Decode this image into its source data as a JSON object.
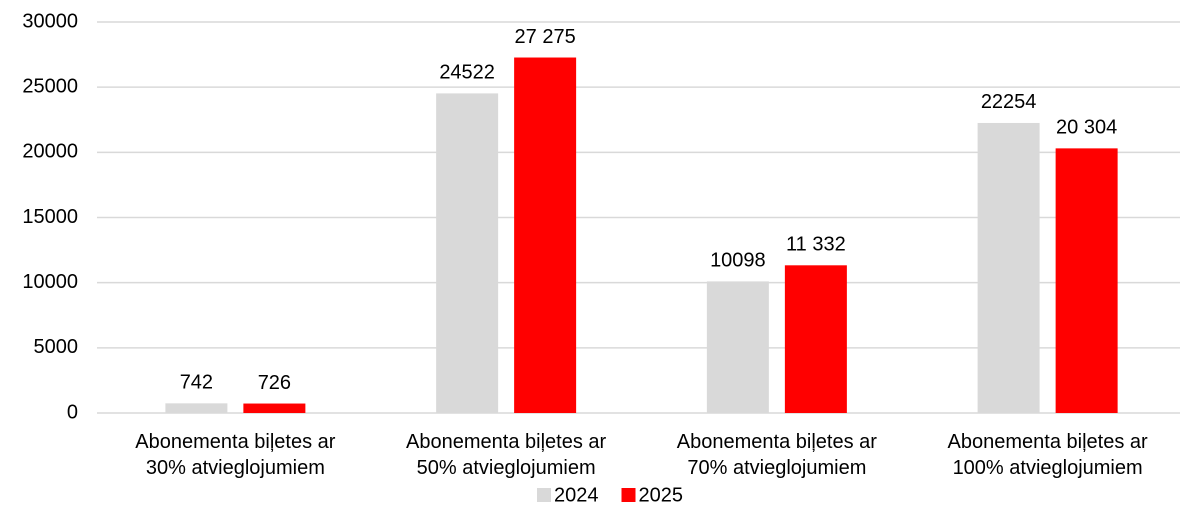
{
  "chart_data": {
    "type": "bar",
    "categories": [
      "Abonementa biļetes ar\n30% atvieglojumiem",
      "Abonementa biļetes ar\n50% atvieglojumiem",
      "Abonementa biļetes ar\n70% atvieglojumiem",
      "Abonementa biļetes ar\n100% atvieglojumiem"
    ],
    "series": [
      {
        "name": "2024",
        "color": "#d9d9d9",
        "values": [
          742,
          24522,
          10098,
          22254
        ]
      },
      {
        "name": "2025",
        "color": "#ff0000",
        "values": [
          726,
          27275,
          11332,
          20304
        ],
        "value_labels": [
          "726",
          "27 275",
          "11 332",
          "20 304"
        ]
      }
    ],
    "ylim": [
      0,
      30000
    ],
    "yticks": [
      0,
      5000,
      10000,
      15000,
      20000,
      25000,
      30000
    ],
    "grid": true,
    "legend": "bottom"
  }
}
